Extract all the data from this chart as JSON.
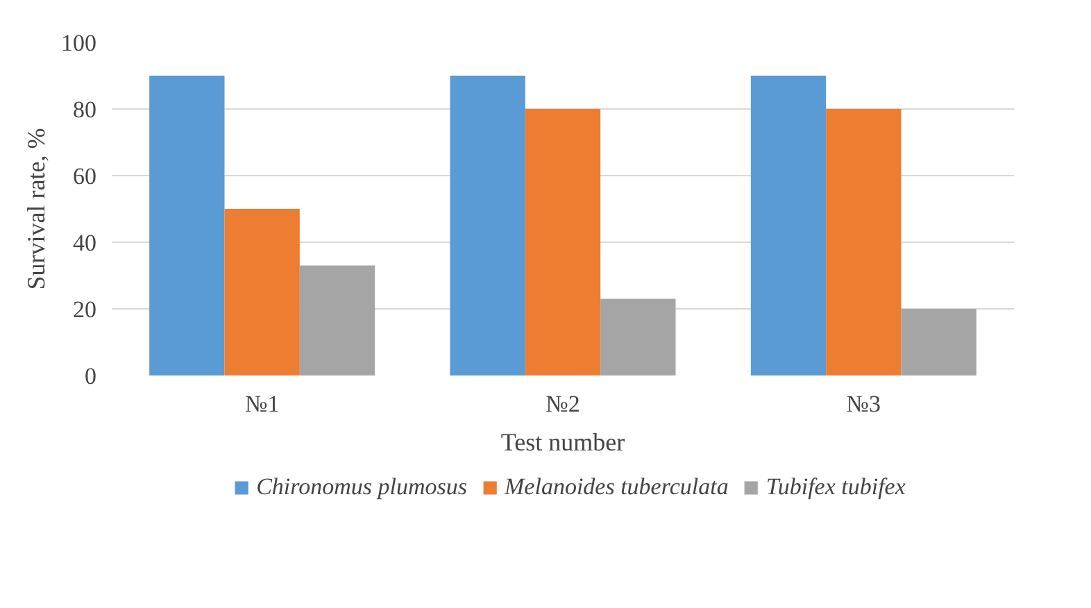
{
  "chart_data": {
    "type": "bar",
    "xlabel": "Test number",
    "ylabel": "Survival rate, %",
    "categories": [
      "№1",
      "№2",
      "№3"
    ],
    "series": [
      {
        "name": "Chironomus plumosus",
        "color": "#5b9bd5",
        "values": [
          90,
          90,
          90
        ]
      },
      {
        "name": "Melanoides tuberculata",
        "color": "#ed7d31",
        "values": [
          50,
          80,
          80
        ]
      },
      {
        "name": "Tubifex tubifex",
        "color": "#a5a5a5",
        "values": [
          33,
          23,
          20
        ]
      }
    ],
    "ylim": [
      0,
      100
    ],
    "yticks": [
      0,
      20,
      40,
      60,
      80,
      100
    ],
    "grid": "y",
    "legend": "bottom"
  }
}
